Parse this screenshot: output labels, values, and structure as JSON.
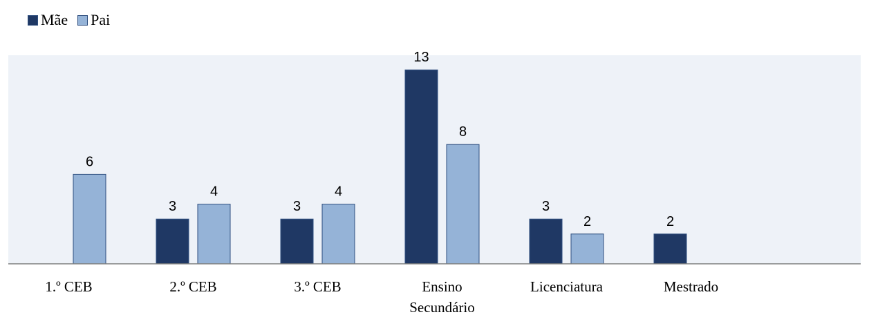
{
  "chart_data": {
    "type": "bar",
    "categories": [
      "1.º CEB",
      "2.º CEB",
      "3.º CEB",
      "Ensino Secundário",
      "Licenciatura",
      "Mestrado",
      ""
    ],
    "category_lines": [
      [
        "1.º CEB"
      ],
      [
        "2.º CEB"
      ],
      [
        "3.º CEB"
      ],
      [
        "Ensino",
        "Secundário"
      ],
      [
        "Licenciatura"
      ],
      [
        "Mestrado"
      ],
      [
        ""
      ]
    ],
    "series": [
      {
        "name": "Mãe",
        "color": "#1f3864",
        "values": [
          null,
          3,
          3,
          13,
          3,
          2,
          null
        ]
      },
      {
        "name": "Pai",
        "color": "#95b3d7",
        "values": [
          6,
          4,
          4,
          8,
          2,
          null,
          null
        ]
      }
    ],
    "ylim": [
      0,
      13
    ],
    "legend_position": "top-left",
    "plot_background": "#eef2f8",
    "grid": false
  }
}
